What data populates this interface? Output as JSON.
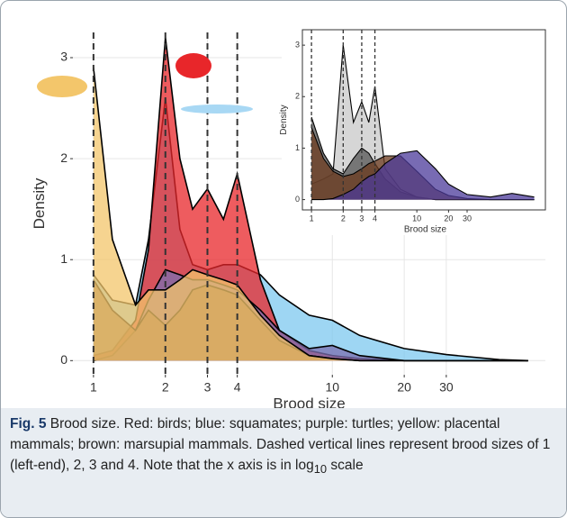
{
  "chart_data": [
    {
      "type": "density",
      "ylabel": "Density",
      "xlabel": "Brood size",
      "log_x": true,
      "grid": true,
      "xlim": [
        0.82,
        78
      ],
      "ylim": [
        -0.14,
        3.25
      ],
      "xticks": [
        1,
        2,
        3,
        4,
        10,
        20,
        30
      ],
      "yticks": [
        0,
        1,
        2,
        3
      ],
      "vlines": [
        1,
        2,
        3,
        4
      ],
      "x": [
        1,
        1.2,
        1.5,
        1.7,
        2,
        2.3,
        2.6,
        3,
        3.5,
        4,
        5,
        6,
        8,
        10,
        13,
        20,
        30,
        50,
        66
      ],
      "series": [
        {
          "color": "#7ec8ef",
          "values": [
            0.85,
            0.6,
            0.55,
            1.2,
            2.6,
            1.3,
            0.95,
            0.9,
            0.95,
            0.95,
            0.85,
            0.65,
            0.45,
            0.4,
            0.25,
            0.12,
            0.06,
            0.01,
            0
          ]
        },
        {
          "color": "#e8262a",
          "values": [
            0.05,
            0.1,
            0.4,
            1.1,
            3.2,
            2.0,
            1.5,
            1.7,
            1.4,
            1.85,
            0.8,
            0.3,
            0.1,
            0.05,
            0.02,
            0,
            0,
            0,
            0
          ]
        },
        {
          "color": "#7b6fb0",
          "values": [
            0,
            0.05,
            0.3,
            0.6,
            0.9,
            0.85,
            0.8,
            0.8,
            0.75,
            0.7,
            0.5,
            0.3,
            0.12,
            0.15,
            0.05,
            0,
            0,
            0,
            0
          ]
        },
        {
          "color": "#8a5a35",
          "values": [
            0.8,
            0.5,
            0.3,
            0.5,
            0.35,
            0.5,
            0.7,
            0.75,
            0.7,
            0.65,
            0.4,
            0.2,
            0.05,
            0.02,
            0,
            0,
            0,
            0,
            0
          ]
        },
        {
          "color": "#f3c66b",
          "values": [
            2.9,
            1.2,
            0.55,
            0.7,
            0.7,
            0.8,
            0.9,
            0.85,
            0.8,
            0.75,
            0.45,
            0.25,
            0.05,
            0.02,
            0,
            0,
            0,
            0,
            0
          ]
        }
      ]
    },
    {
      "type": "density",
      "ylabel": "Density",
      "xlabel": "Brood size",
      "log_x": true,
      "grid": false,
      "xlim": [
        0.87,
        166
      ],
      "ylim": [
        -0.2,
        3.3
      ],
      "xticks": [
        1,
        2,
        3,
        4,
        10,
        20,
        30
      ],
      "yticks": [
        0,
        1,
        2,
        3
      ],
      "vlines": [
        1,
        2,
        3,
        4
      ],
      "x": [
        1,
        1.3,
        1.6,
        2,
        2.5,
        3,
        3.5,
        4,
        5,
        7,
        10,
        15,
        20,
        30,
        50,
        80,
        130
      ],
      "series": [
        {
          "color": "#c8c8c8",
          "values": [
            0.3,
            0.4,
            0.5,
            3.0,
            1.5,
            1.9,
            1.5,
            2.2,
            0.6,
            0.2,
            0.05,
            0,
            0,
            0,
            0,
            0,
            0
          ]
        },
        {
          "color": "#555555",
          "values": [
            1.6,
            0.9,
            0.6,
            0.5,
            0.8,
            1.0,
            0.9,
            0.7,
            0.4,
            0.15,
            0.05,
            0,
            0,
            0,
            0,
            0,
            0
          ]
        },
        {
          "color": "#6b3a1e",
          "values": [
            1.4,
            0.8,
            0.55,
            0.45,
            0.5,
            0.6,
            0.7,
            0.75,
            0.85,
            0.85,
            0.55,
            0.2,
            0.08,
            0.02,
            0,
            0,
            0
          ]
        },
        {
          "color": "#4b3a9a",
          "values": [
            0,
            0,
            0.02,
            0.1,
            0.2,
            0.35,
            0.45,
            0.5,
            0.7,
            0.9,
            0.95,
            0.6,
            0.3,
            0.1,
            0.05,
            0.12,
            0.05
          ]
        }
      ]
    }
  ],
  "caption": {
    "label": "Fig. 5",
    "text": "Brood size. Red: birds; blue: squamates; purple: turtles; yellow: placental mammals; brown: marsupial mammals. Dashed vertical lines represent brood sizes of 1 (left-end), 2, 3 and 4. Note that the x axis is in log",
    "subscript": "10",
    "text_end": "scale"
  }
}
